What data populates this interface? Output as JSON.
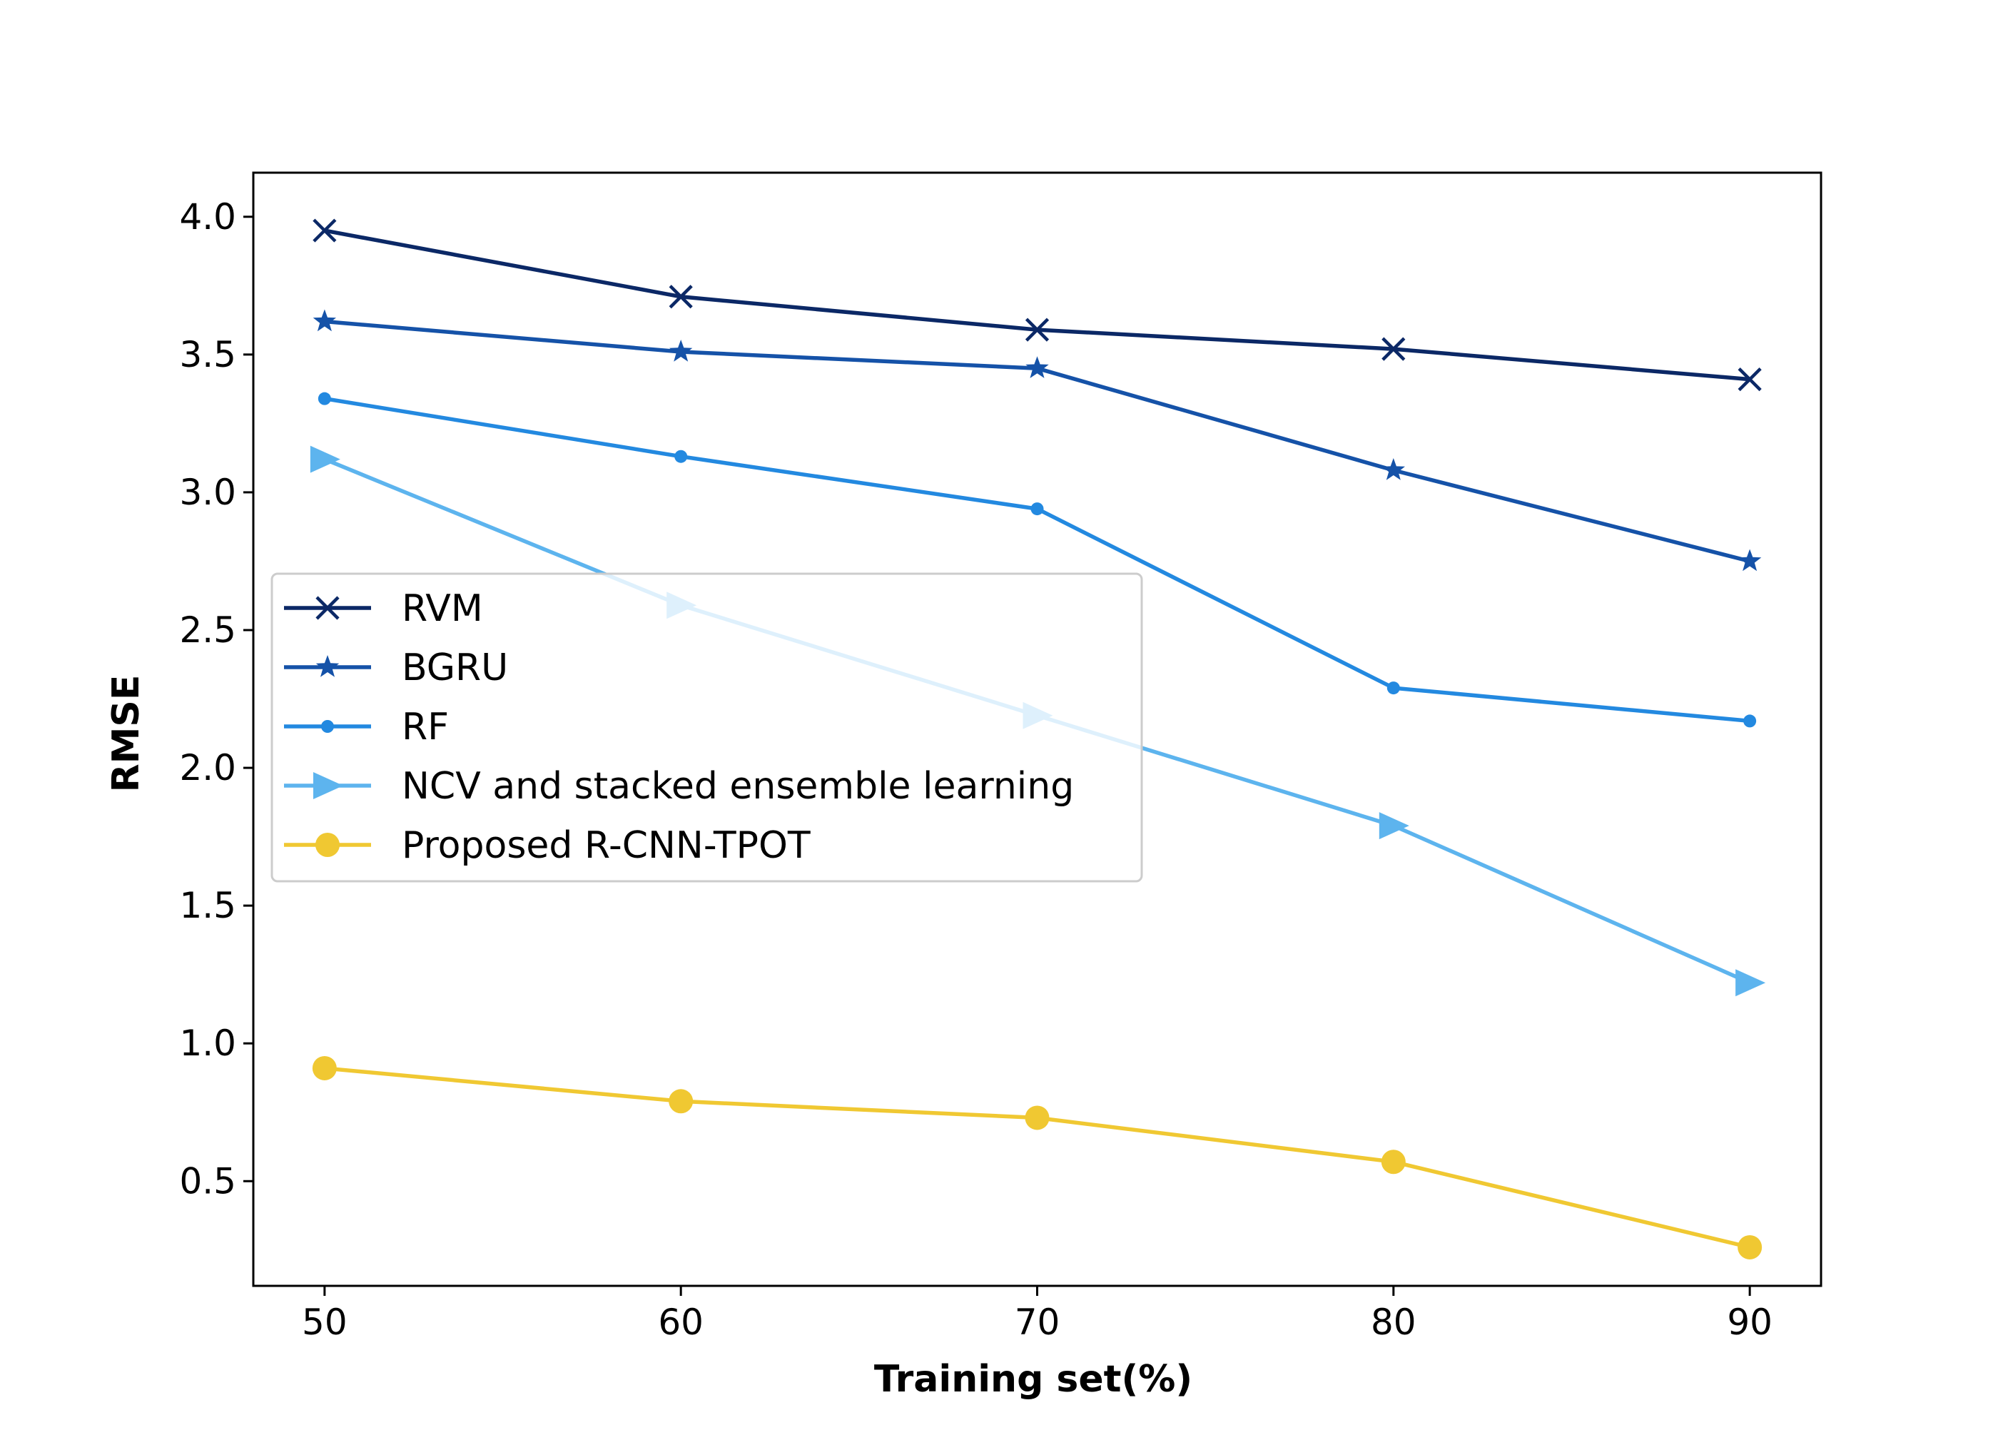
{
  "chart_data": {
    "type": "line",
    "title": "",
    "xlabel": "Training set(%)",
    "ylabel": "RMSE",
    "x": [
      50,
      60,
      70,
      80,
      90
    ],
    "xlim": [
      48,
      92
    ],
    "ylim": [
      0.12,
      4.16
    ],
    "xticks": [
      "50",
      "60",
      "70",
      "80",
      "90"
    ],
    "yticks": [
      "0.5",
      "1.0",
      "1.5",
      "2.0",
      "2.5",
      "3.0",
      "3.5",
      "4.0"
    ],
    "grid": false,
    "legend_position": "center-left",
    "series": [
      {
        "name": "RVM",
        "marker": "x",
        "color": "#0b2866",
        "values": [
          3.95,
          3.71,
          3.59,
          3.52,
          3.41
        ]
      },
      {
        "name": "BGRU",
        "marker": "star",
        "color": "#1552a8",
        "values": [
          3.62,
          3.51,
          3.45,
          3.08,
          2.75
        ]
      },
      {
        "name": "RF",
        "marker": "dot",
        "color": "#2389e0",
        "values": [
          3.34,
          3.13,
          2.94,
          2.29,
          2.17
        ]
      },
      {
        "name": "NCV and stacked ensemble learning",
        "marker": "triangle-right",
        "color": "#5db4ee",
        "values": [
          3.12,
          2.59,
          2.19,
          1.79,
          1.22
        ]
      },
      {
        "name": "Proposed R-CNN-TPOT",
        "marker": "circle",
        "color": "#f0c832",
        "values": [
          0.91,
          0.79,
          0.73,
          0.57,
          0.26
        ]
      }
    ]
  }
}
